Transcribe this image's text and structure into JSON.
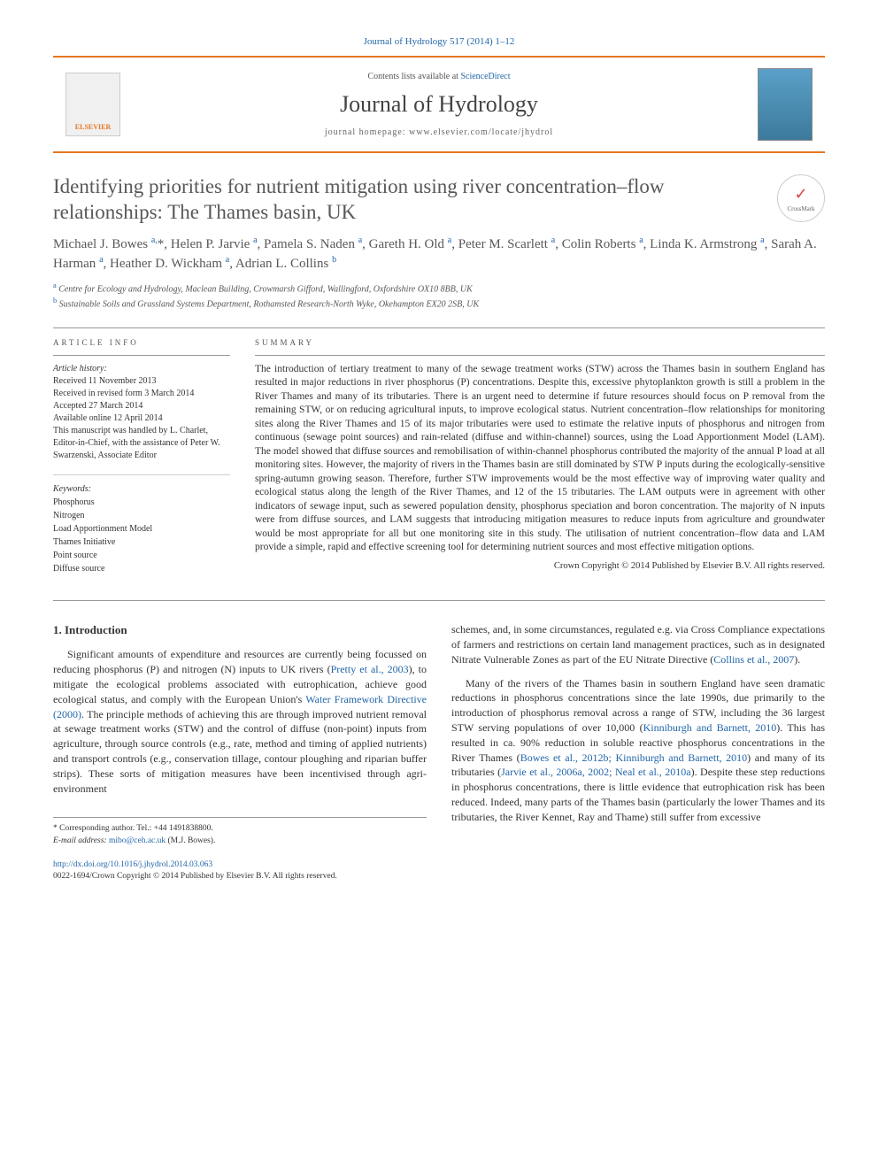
{
  "header": {
    "citation": "Journal of Hydrology 517 (2014) 1–12",
    "contents_prefix": "Contents lists available at ",
    "contents_link": "ScienceDirect",
    "journal_name": "Journal of Hydrology",
    "homepage_prefix": "journal homepage: ",
    "homepage_url": "www.elsevier.com/locate/jhydrol",
    "publisher_logo": "ELSEVIER",
    "crossmark_label": "CrossMark"
  },
  "colors": {
    "accent": "#e67722",
    "link": "#2266aa",
    "text_gray": "#585858"
  },
  "article": {
    "title": "Identifying priorities for nutrient mitigation using river concentration–flow relationships: The Thames basin, UK",
    "authors_html": "Michael J. Bowes <sup>a,</sup>*, Helen P. Jarvie <sup>a</sup>, Pamela S. Naden <sup>a</sup>, Gareth H. Old <sup>a</sup>, Peter M. Scarlett <sup>a</sup>, Colin Roberts <sup>a</sup>, Linda K. Armstrong <sup>a</sup>, Sarah A. Harman <sup>a</sup>, Heather D. Wickham <sup>a</sup>, Adrian L. Collins <sup>b</sup>",
    "affiliations": [
      {
        "marker": "a",
        "text": "Centre for Ecology and Hydrology, Maclean Building, Crowmarsh Gifford, Wallingford, Oxfordshire OX10 8BB, UK"
      },
      {
        "marker": "b",
        "text": "Sustainable Soils and Grassland Systems Department, Rothamsted Research-North Wyke, Okehampton EX20 2SB, UK"
      }
    ]
  },
  "info": {
    "heading": "ARTICLE INFO",
    "history_label": "Article history:",
    "history": [
      "Received 11 November 2013",
      "Received in revised form 3 March 2014",
      "Accepted 27 March 2014",
      "Available online 12 April 2014",
      "This manuscript was handled by L. Charlet, Editor-in-Chief, with the assistance of Peter W. Swarzenski, Associate Editor"
    ],
    "keywords_label": "Keywords:",
    "keywords": [
      "Phosphorus",
      "Nitrogen",
      "Load Apportionment Model",
      "Thames Initiative",
      "Point source",
      "Diffuse source"
    ]
  },
  "summary": {
    "heading": "SUMMARY",
    "text": "The introduction of tertiary treatment to many of the sewage treatment works (STW) across the Thames basin in southern England has resulted in major reductions in river phosphorus (P) concentrations. Despite this, excessive phytoplankton growth is still a problem in the River Thames and many of its tributaries. There is an urgent need to determine if future resources should focus on P removal from the remaining STW, or on reducing agricultural inputs, to improve ecological status. Nutrient concentration–flow relationships for monitoring sites along the River Thames and 15 of its major tributaries were used to estimate the relative inputs of phosphorus and nitrogen from continuous (sewage point sources) and rain-related (diffuse and within-channel) sources, using the Load Apportionment Model (LAM). The model showed that diffuse sources and remobilisation of within-channel phosphorus contributed the majority of the annual P load at all monitoring sites. However, the majority of rivers in the Thames basin are still dominated by STW P inputs during the ecologically-sensitive spring-autumn growing season. Therefore, further STW improvements would be the most effective way of improving water quality and ecological status along the length of the River Thames, and 12 of the 15 tributaries. The LAM outputs were in agreement with other indicators of sewage input, such as sewered population density, phosphorus speciation and boron concentration. The majority of N inputs were from diffuse sources, and LAM suggests that introducing mitigation measures to reduce inputs from agriculture and groundwater would be most appropriate for all but one monitoring site in this study. The utilisation of nutrient concentration–flow data and LAM provide a simple, rapid and effective screening tool for determining nutrient sources and most effective mitigation options.",
    "copyright": "Crown Copyright © 2014 Published by Elsevier B.V. All rights reserved."
  },
  "body": {
    "section_number": "1.",
    "section_title": "Introduction",
    "col1_p1_pre": "Significant amounts of expenditure and resources are currently being focussed on reducing phosphorus (P) and nitrogen (N) inputs to UK rivers (",
    "col1_p1_link1": "Pretty et al., 2003",
    "col1_p1_mid1": "), to mitigate the ecological problems associated with eutrophication, achieve good ecological status, and comply with the European Union's ",
    "col1_p1_link2": "Water Framework Directive (2000)",
    "col1_p1_post": ". The principle methods of achieving this are through improved nutrient removal at sewage treatment works (STW) and the control of diffuse (non-point) inputs from agriculture, through source controls (e.g., rate, method and timing of applied nutrients) and transport controls (e.g., conservation tillage, contour ploughing and riparian buffer strips). These sorts of mitigation measures have been incentivised through agri-environment",
    "col2_p1_pre": "schemes, and, in some circumstances, regulated e.g. via Cross Compliance expectations of farmers and restrictions on certain land management practices, such as in designated Nitrate Vulnerable Zones as part of the EU Nitrate Directive (",
    "col2_p1_link1": "Collins et al., 2007",
    "col2_p1_post": ").",
    "col2_p2_pre": "Many of the rivers of the Thames basin in southern England have seen dramatic reductions in phosphorus concentrations since the late 1990s, due primarily to the introduction of phosphorus removal across a range of STW, including the 36 largest STW serving populations of over 10,000 (",
    "col2_p2_link1": "Kinniburgh and Barnett, 2010",
    "col2_p2_mid1": "). This has resulted in ca. 90% reduction in soluble reactive phosphorus concentrations in the River Thames (",
    "col2_p2_link2": "Bowes et al., 2012b; Kinniburgh and Barnett, 2010",
    "col2_p2_mid2": ") and many of its tributaries (",
    "col2_p2_link3": "Jarvie et al., 2006a, 2002; Neal et al., 2010a",
    "col2_p2_post": "). Despite these step reductions in phosphorus concentrations, there is little evidence that eutrophication risk has been reduced. Indeed, many parts of the Thames basin (particularly the lower Thames and its tributaries, the River Kennet, Ray and Thame) still suffer from excessive"
  },
  "footnote": {
    "corr_label": "* Corresponding author. Tel.: +44 1491838800.",
    "email_label": "E-mail address: ",
    "email": "mibo@ceh.ac.uk",
    "email_suffix": " (M.J. Bowes)."
  },
  "doi": {
    "url": "http://dx.doi.org/10.1016/j.jhydrol.2014.03.063",
    "issn_line": "0022-1694/Crown Copyright © 2014 Published by Elsevier B.V. All rights reserved."
  }
}
